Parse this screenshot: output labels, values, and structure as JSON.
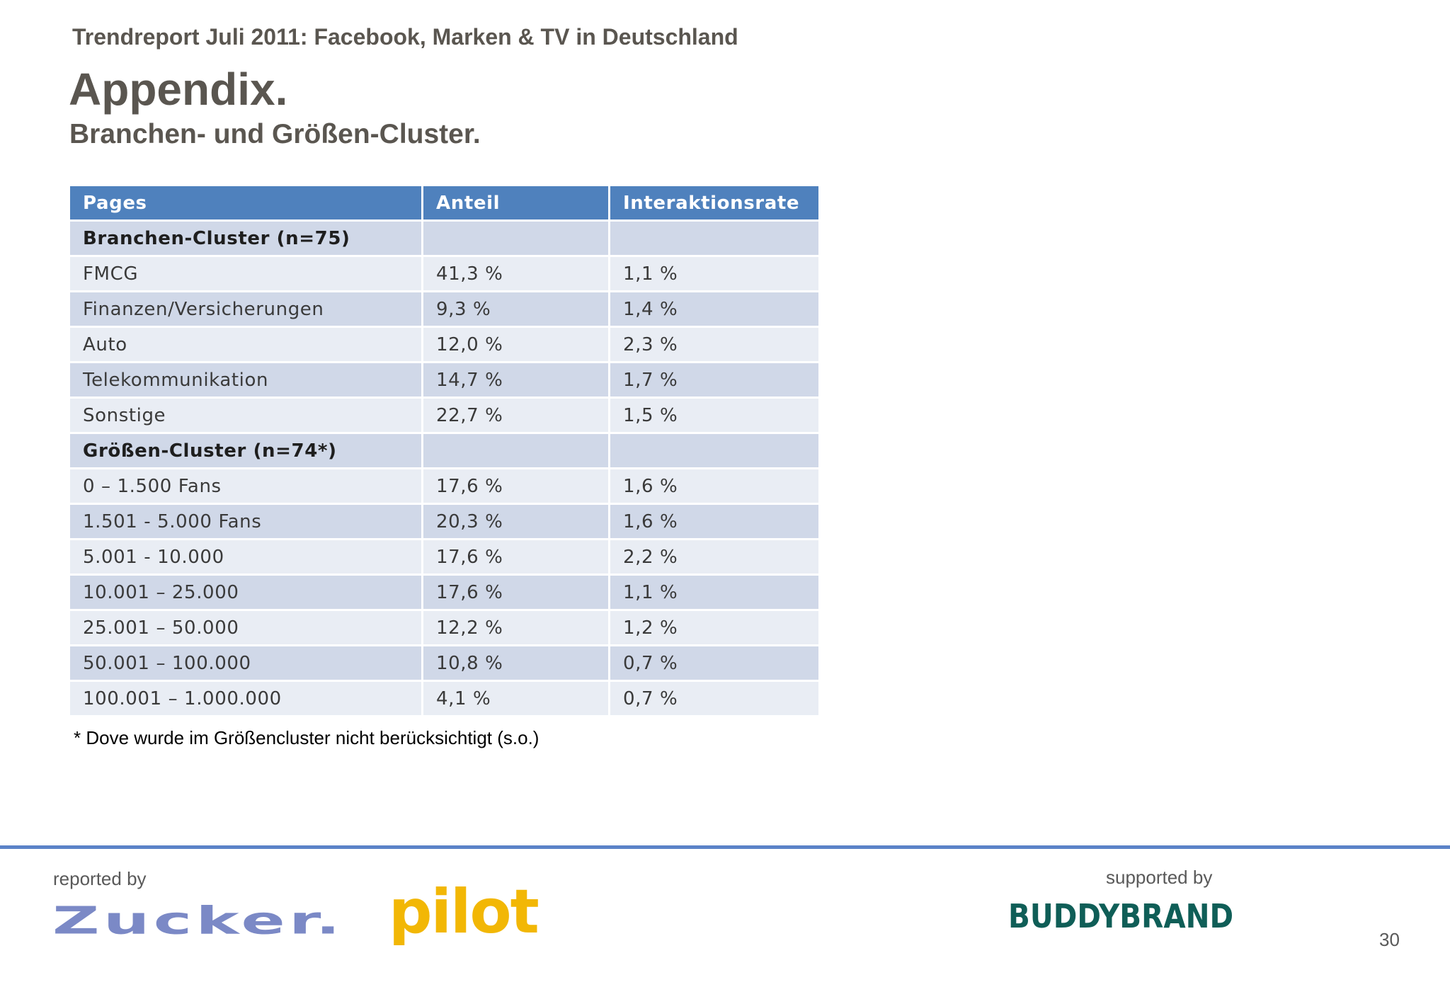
{
  "header": {
    "report_title": "Trendreport Juli 2011: Facebook, Marken & TV in Deutschland",
    "title": "Appendix.",
    "subtitle": "Branchen- und Größen-Cluster."
  },
  "table": {
    "columns": [
      "Pages",
      "Anteil",
      "Interaktionsrate"
    ],
    "rows": [
      {
        "type": "section",
        "cells": [
          "Branchen-Cluster (n=75)",
          "",
          ""
        ]
      },
      {
        "type": "light",
        "cells": [
          "FMCG",
          "41,3 %",
          "1,1 %"
        ]
      },
      {
        "type": "dark",
        "cells": [
          "Finanzen/Versicherungen",
          "9,3 %",
          "1,4 %"
        ]
      },
      {
        "type": "light",
        "cells": [
          "Auto",
          "12,0 %",
          "2,3 %"
        ]
      },
      {
        "type": "dark",
        "cells": [
          "Telekommunikation",
          "14,7 %",
          "1,7 %"
        ]
      },
      {
        "type": "light",
        "cells": [
          "Sonstige",
          "22,7 %",
          "1,5 %"
        ]
      },
      {
        "type": "section",
        "cells": [
          "Größen-Cluster (n=74*)",
          "",
          ""
        ]
      },
      {
        "type": "light",
        "cells": [
          "0 – 1.500 Fans",
          "17,6 %",
          "1,6 %"
        ]
      },
      {
        "type": "dark",
        "cells": [
          "1.501 - 5.000 Fans",
          "20,3 %",
          "1,6 %"
        ]
      },
      {
        "type": "light",
        "cells": [
          "5.001 - 10.000",
          "17,6 %",
          "2,2 %"
        ]
      },
      {
        "type": "dark",
        "cells": [
          "10.001 – 25.000",
          "17,6 %",
          "1,1 %"
        ]
      },
      {
        "type": "light",
        "cells": [
          "25.001 – 50.000",
          "12,2 %",
          "1,2 %"
        ]
      },
      {
        "type": "dark",
        "cells": [
          "50.001 – 100.000",
          "10,8 %",
          "0,7 %"
        ]
      },
      {
        "type": "light",
        "cells": [
          "100.001 – 1.000.000",
          " 4,1 %",
          "0,7 %"
        ]
      }
    ]
  },
  "footnote": "* Dove wurde im Größencluster nicht berücksichtigt (s.o.)",
  "footer": {
    "reported_by": "reported by",
    "supported_by": "supported by",
    "logo_zucker": "Zucker.",
    "logo_pilot": "pilot",
    "logo_buddybrand": "BUDDYBRAND",
    "page_number": "30"
  },
  "colors": {
    "header_blue": "#4f81bd",
    "row_dark": "#d0d8e8",
    "row_light": "#e9edf4",
    "title_gray": "#5a5650",
    "footer_line": "#5b83c8"
  }
}
